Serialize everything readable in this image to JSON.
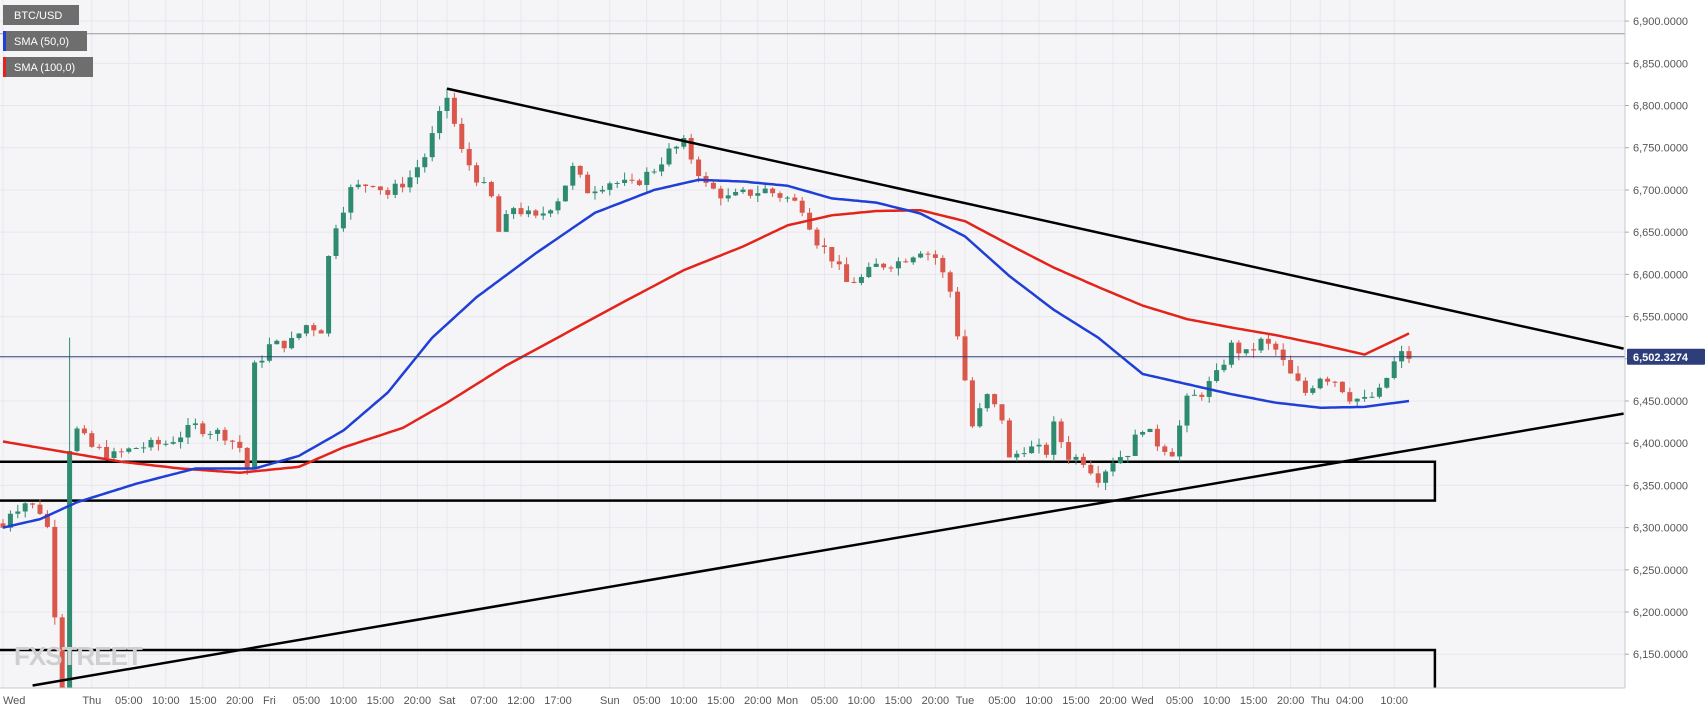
{
  "chart_data": {
    "type": "candlestick",
    "symbol": "BTC/USD",
    "legend": [
      {
        "label": "BTC/USD",
        "color": "#6e6e6e"
      },
      {
        "label": "SMA (50,0)",
        "color": "#1f3fd6"
      },
      {
        "label": "SMA (100,0)",
        "color": "#e3241b"
      }
    ],
    "ylim": [
      6110000,
      6925000
    ],
    "y_ticks": [
      {
        "value": 6150000,
        "label": "6,150.0000"
      },
      {
        "value": 6200000,
        "label": "6,200.0000"
      },
      {
        "value": 6250000,
        "label": "6,250.0000"
      },
      {
        "value": 6300000,
        "label": "6,300.0000"
      },
      {
        "value": 6350000,
        "label": "6,350.0000"
      },
      {
        "value": 6400000,
        "label": "6,400.0000"
      },
      {
        "value": 6450000,
        "label": "6,450.0000"
      },
      {
        "value": 6500000,
        "label": "6,500.0000"
      },
      {
        "value": 6550000,
        "label": "6,550.0000"
      },
      {
        "value": 6600000,
        "label": "6,600.0000"
      },
      {
        "value": 6650000,
        "label": "6,650.0000"
      },
      {
        "value": 6700000,
        "label": "6,700.0000"
      },
      {
        "value": 6750000,
        "label": "6,750.0000"
      },
      {
        "value": 6800000,
        "label": "6,800.0000"
      },
      {
        "value": 6850000,
        "label": "6,850.0000"
      },
      {
        "value": 6900000,
        "label": "6,900.0000"
      }
    ],
    "x_ticks": [
      {
        "bar": 0,
        "label": "Wed"
      },
      {
        "bar": 12,
        "label": "Thu"
      },
      {
        "bar": 17,
        "label": "05:00"
      },
      {
        "bar": 22,
        "label": "10:00"
      },
      {
        "bar": 27,
        "label": "15:00"
      },
      {
        "bar": 32,
        "label": "20:00"
      },
      {
        "bar": 36,
        "label": "Fri"
      },
      {
        "bar": 41,
        "label": "05:00"
      },
      {
        "bar": 46,
        "label": "10:00"
      },
      {
        "bar": 51,
        "label": "15:00"
      },
      {
        "bar": 56,
        "label": "20:00"
      },
      {
        "bar": 60,
        "label": "Sat"
      },
      {
        "bar": 65,
        "label": "07:00"
      },
      {
        "bar": 70,
        "label": "12:00"
      },
      {
        "bar": 75,
        "label": "17:00"
      },
      {
        "bar": 82,
        "label": "Sun"
      },
      {
        "bar": 87,
        "label": "05:00"
      },
      {
        "bar": 92,
        "label": "10:00"
      },
      {
        "bar": 97,
        "label": "15:00"
      },
      {
        "bar": 102,
        "label": "20:00"
      },
      {
        "bar": 106,
        "label": "Mon"
      },
      {
        "bar": 111,
        "label": "05:00"
      },
      {
        "bar": 116,
        "label": "10:00"
      },
      {
        "bar": 121,
        "label": "15:00"
      },
      {
        "bar": 126,
        "label": "20:00"
      },
      {
        "bar": 130,
        "label": "Tue"
      },
      {
        "bar": 135,
        "label": "05:00"
      },
      {
        "bar": 140,
        "label": "10:00"
      },
      {
        "bar": 145,
        "label": "15:00"
      },
      {
        "bar": 150,
        "label": "20:00"
      },
      {
        "bar": 154,
        "label": "Wed"
      },
      {
        "bar": 159,
        "label": "05:00"
      },
      {
        "bar": 164,
        "label": "10:00"
      },
      {
        "bar": 169,
        "label": "15:00"
      },
      {
        "bar": 174,
        "label": "20:00"
      },
      {
        "bar": 178,
        "label": "Thu"
      },
      {
        "bar": 182,
        "label": "04:00"
      },
      {
        "bar": 188,
        "label": "10:00"
      }
    ],
    "bar_count": 193,
    "ohlc_anchors": [
      [
        0,
        6300000
      ],
      [
        1,
        6320000
      ],
      [
        3,
        6330000
      ],
      [
        5,
        6320000
      ],
      [
        6,
        6300000
      ],
      [
        7,
        6200000
      ],
      [
        8,
        6115000
      ],
      [
        9,
        6395000
      ],
      [
        10,
        6415000
      ],
      [
        12,
        6395000
      ],
      [
        15,
        6385000
      ],
      [
        18,
        6395000
      ],
      [
        22,
        6400000
      ],
      [
        26,
        6420000
      ],
      [
        30,
        6410000
      ],
      [
        32,
        6395000
      ],
      [
        33,
        6370000
      ],
      [
        34,
        6490000
      ],
      [
        36,
        6515000
      ],
      [
        39,
        6520000
      ],
      [
        41,
        6540000
      ],
      [
        43,
        6535000
      ],
      [
        44,
        6620000
      ],
      [
        45,
        6660000
      ],
      [
        47,
        6700000
      ],
      [
        50,
        6710000
      ],
      [
        52,
        6695000
      ],
      [
        55,
        6715000
      ],
      [
        57,
        6740000
      ],
      [
        60,
        6810000
      ],
      [
        62,
        6745000
      ],
      [
        64,
        6715000
      ],
      [
        66,
        6690000
      ],
      [
        67,
        6650000
      ],
      [
        69,
        6680000
      ],
      [
        72,
        6665000
      ],
      [
        75,
        6690000
      ],
      [
        77,
        6725000
      ],
      [
        79,
        6700000
      ],
      [
        82,
        6710000
      ],
      [
        85,
        6705000
      ],
      [
        88,
        6725000
      ],
      [
        90,
        6745000
      ],
      [
        92,
        6755000
      ],
      [
        95,
        6705000
      ],
      [
        98,
        6690000
      ],
      [
        100,
        6695000
      ],
      [
        103,
        6700000
      ],
      [
        106,
        6690000
      ],
      [
        108,
        6680000
      ],
      [
        110,
        6640000
      ],
      [
        112,
        6620000
      ],
      [
        114,
        6590000
      ],
      [
        116,
        6595000
      ],
      [
        118,
        6610000
      ],
      [
        121,
        6615000
      ],
      [
        124,
        6630000
      ],
      [
        126,
        6620000
      ],
      [
        128,
        6580000
      ],
      [
        129,
        6530000
      ],
      [
        131,
        6420000
      ],
      [
        133,
        6455000
      ],
      [
        135,
        6430000
      ],
      [
        136,
        6380000
      ],
      [
        138,
        6395000
      ],
      [
        141,
        6390000
      ],
      [
        142,
        6420000
      ],
      [
        144,
        6385000
      ],
      [
        146,
        6380000
      ],
      [
        148,
        6360000
      ],
      [
        150,
        6380000
      ],
      [
        152,
        6390000
      ],
      [
        154,
        6420000
      ],
      [
        156,
        6400000
      ],
      [
        158,
        6390000
      ],
      [
        160,
        6450000
      ],
      [
        162,
        6460000
      ],
      [
        164,
        6480000
      ],
      [
        166,
        6515000
      ],
      [
        168,
        6505000
      ],
      [
        170,
        6520000
      ],
      [
        172,
        6510000
      ],
      [
        174,
        6480000
      ],
      [
        176,
        6460000
      ],
      [
        178,
        6480000
      ],
      [
        180,
        6475000
      ],
      [
        182,
        6455000
      ],
      [
        184,
        6450000
      ],
      [
        186,
        6460000
      ],
      [
        188,
        6495000
      ],
      [
        189,
        6505000
      ],
      [
        190,
        6502000
      ]
    ],
    "sma50": [
      [
        0,
        6300000
      ],
      [
        5,
        6310000
      ],
      [
        10,
        6330000
      ],
      [
        18,
        6352000
      ],
      [
        26,
        6370000
      ],
      [
        34,
        6370000
      ],
      [
        40,
        6385000
      ],
      [
        46,
        6415000
      ],
      [
        52,
        6460000
      ],
      [
        58,
        6525000
      ],
      [
        64,
        6573000
      ],
      [
        72,
        6625000
      ],
      [
        80,
        6673000
      ],
      [
        88,
        6700000
      ],
      [
        94,
        6712000
      ],
      [
        100,
        6710000
      ],
      [
        106,
        6705000
      ],
      [
        112,
        6690000
      ],
      [
        118,
        6685000
      ],
      [
        124,
        6672000
      ],
      [
        130,
        6645000
      ],
      [
        136,
        6598000
      ],
      [
        142,
        6558000
      ],
      [
        148,
        6525000
      ],
      [
        154,
        6482000
      ],
      [
        160,
        6470000
      ],
      [
        166,
        6458000
      ],
      [
        172,
        6448000
      ],
      [
        178,
        6442000
      ],
      [
        184,
        6443000
      ],
      [
        190,
        6450000
      ]
    ],
    "sma100": [
      [
        0,
        6402000
      ],
      [
        8,
        6390000
      ],
      [
        16,
        6378000
      ],
      [
        24,
        6370000
      ],
      [
        32,
        6365000
      ],
      [
        40,
        6372000
      ],
      [
        46,
        6395000
      ],
      [
        54,
        6418000
      ],
      [
        60,
        6448000
      ],
      [
        68,
        6492000
      ],
      [
        76,
        6530000
      ],
      [
        84,
        6568000
      ],
      [
        92,
        6605000
      ],
      [
        100,
        6633000
      ],
      [
        106,
        6658000
      ],
      [
        112,
        6670000
      ],
      [
        118,
        6675000
      ],
      [
        124,
        6676000
      ],
      [
        130,
        6663000
      ],
      [
        136,
        6635000
      ],
      [
        142,
        6608000
      ],
      [
        148,
        6585000
      ],
      [
        154,
        6563000
      ],
      [
        160,
        6547000
      ],
      [
        166,
        6537000
      ],
      [
        172,
        6528000
      ],
      [
        178,
        6517000
      ],
      [
        184,
        6505000
      ],
      [
        190,
        6530000
      ]
    ],
    "trendlines": [
      {
        "name": "descending-resistance",
        "from": [
          60,
          6820000
        ],
        "to": [
          219,
          6512000
        ]
      },
      {
        "name": "ascending-support",
        "from": [
          4,
          6113000
        ],
        "to": [
          219,
          6435000
        ]
      }
    ],
    "zones": [
      {
        "name": "support-zone-upper",
        "from_bar": 0,
        "to_bar": 193.5,
        "y_top": 6378000,
        "y_bottom": 6332000
      },
      {
        "name": "support-zone-lower",
        "from_bar": 0,
        "to_bar": 193.5,
        "y_top": 6155000,
        "y_bottom": 6108000
      }
    ],
    "horizontal_lines": [
      {
        "name": "top-reference-line",
        "value": 6885000,
        "color": "#9a9a9a"
      },
      {
        "name": "current-price-line",
        "value": 6502327,
        "color": "#2d3e7a"
      }
    ],
    "current_price_label": "6,502.3274",
    "colors": {
      "up": "#2e8b6f",
      "down": "#d9574b",
      "sma50": "#1f3fd6",
      "sma100": "#e3241b",
      "trendline": "#000000",
      "grid": "#e6e6ee",
      "price_label_bg": "#2d3e7a",
      "legend_bg": "#6e6e6e"
    },
    "watermark": "FXSTREET",
    "grid": true
  }
}
